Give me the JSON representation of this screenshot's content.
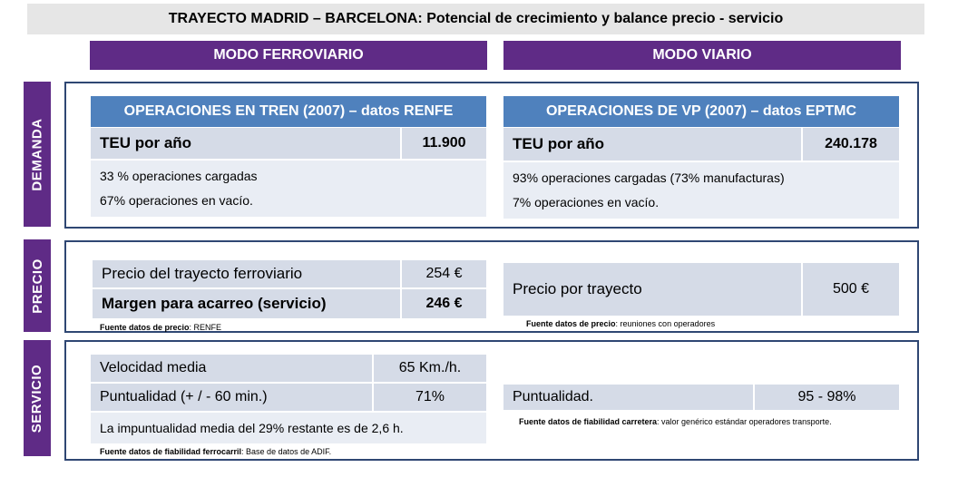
{
  "title": "TRAYECTO MADRID – BARCELONA: Potencial de crecimiento y balance  precio - servicio",
  "modes": {
    "rail": "MODO FERROVIARIO",
    "road": "MODO VIARIO"
  },
  "sections": {
    "demanda": "DEMANDA",
    "precio": "PRECIO",
    "servicio": "SERVICIO"
  },
  "demanda": {
    "rail": {
      "header": "OPERACIONES EN TREN (2007) – datos RENFE",
      "teu_label": "TEU por año",
      "teu_value": "11.900",
      "note1": "33 % operaciones cargadas",
      "note2": "67% operaciones en vacío."
    },
    "road": {
      "header": "OPERACIONES DE VP (2007) – datos EPTMC",
      "teu_label": "TEU por año",
      "teu_value": "240.178",
      "note1": "93% operaciones cargadas (73% manufacturas)",
      "note2": "7% operaciones en vacío."
    }
  },
  "precio": {
    "rail": {
      "price_label": "Precio del trayecto ferroviario",
      "price_value": "254 €",
      "margin_label": "Margen para acarreo (servicio)",
      "margin_value": "246 €",
      "source_bold": "Fuente datos de precio",
      "source_text": ": RENFE"
    },
    "road": {
      "price_label": "Precio por trayecto",
      "price_value": "500 €",
      "source_bold": "Fuente datos de precio",
      "source_text": ": reuniones con  operadores"
    }
  },
  "servicio": {
    "rail": {
      "speed_label": "Velocidad media",
      "speed_value": "65 Km./h.",
      "punct_label": "Puntualidad (+ / - 60 min.)",
      "punct_value": "71%",
      "note": "La impuntualidad media del 29% restante es de 2,6 h.",
      "source_bold": "Fuente datos de fiabilidad ferrocarril",
      "source_text": ": Base de datos de ADIF."
    },
    "road": {
      "punct_label": "Puntualidad.",
      "punct_value": "95 - 98%",
      "source_bold": "Fuente datos de fiabilidad carretera",
      "source_text": ": valor genérico  estándar operadores  transporte."
    }
  },
  "colors": {
    "purple": "#5f2b86",
    "blue_header": "#4f81bd",
    "cell": "#d5dbe7",
    "frame": "#2f4773"
  }
}
